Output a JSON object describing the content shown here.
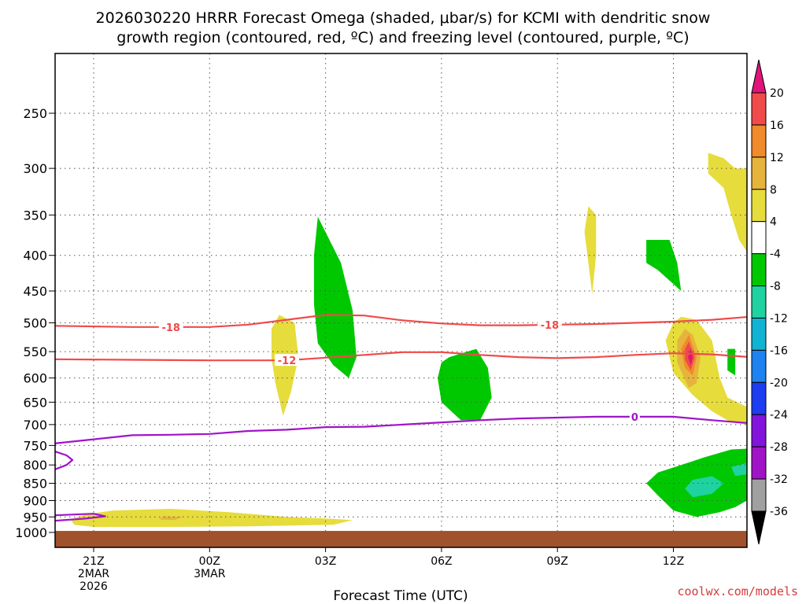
{
  "chart_data": {
    "type": "heatmap",
    "title_lines": [
      "2026030220 HRRR Forecast Omega (shaded, μbar/s) for KCMI with dendritic snow",
      "growth region (contoured, red, ºC) and freezing level (contoured, purple, ºC)"
    ],
    "xlabel": "Forecast Time (UTC)",
    "credit": "coolwx.com/models",
    "x_ticks": [
      {
        "hour": 0,
        "lines": [
          "21Z",
          "2MAR",
          "2026"
        ]
      },
      {
        "hour": 3,
        "lines": [
          "00Z",
          "3MAR"
        ]
      },
      {
        "hour": 6,
        "lines": [
          "03Z"
        ]
      },
      {
        "hour": 9,
        "lines": [
          "06Z"
        ]
      },
      {
        "hour": 12,
        "lines": [
          "09Z"
        ]
      },
      {
        "hour": 15,
        "lines": [
          "12Z"
        ]
      }
    ],
    "xlim": [
      -1,
      17
    ],
    "y_ticks": [
      250,
      300,
      350,
      400,
      450,
      500,
      550,
      600,
      650,
      700,
      750,
      800,
      850,
      900,
      950,
      1000
    ],
    "ylim_hpa": [
      1020,
      200
    ],
    "y_scale": "log-pressure",
    "grid": true,
    "colorbar": {
      "labels": [
        20,
        16,
        12,
        8,
        4,
        -4,
        -8,
        -12,
        -16,
        -20,
        -24,
        -28,
        -32,
        -36
      ],
      "colors": [
        "#e0147a",
        "#f04a4a",
        "#f08a2a",
        "#e6b43c",
        "#e6dc3c",
        "#ffffff",
        "#00c800",
        "#20d2a0",
        "#10b4d2",
        "#1e82f0",
        "#1e3cf0",
        "#8214dc",
        "#a014c8",
        "#a0a0a0",
        "#000000"
      ]
    },
    "ground_color": "#a0522d",
    "ground_top_hpa": 995,
    "omega_regions": [
      {
        "color": "#00c800",
        "points": [
          [
            5.8,
            352
          ],
          [
            6.4,
            410
          ],
          [
            6.7,
            480
          ],
          [
            6.8,
            560
          ],
          [
            6.6,
            600
          ],
          [
            6.2,
            575
          ],
          [
            5.8,
            535
          ],
          [
            5.7,
            470
          ],
          [
            5.7,
            400
          ]
        ]
      },
      {
        "color": "#00c800",
        "points": [
          [
            9.2,
            560
          ],
          [
            9.9,
            545
          ],
          [
            10.2,
            580
          ],
          [
            10.3,
            640
          ],
          [
            10.0,
            690
          ],
          [
            9.5,
            690
          ],
          [
            9.0,
            650
          ],
          [
            8.9,
            600
          ],
          [
            9.0,
            570
          ]
        ]
      },
      {
        "color": "#00c800",
        "points": [
          [
            14.3,
            380
          ],
          [
            14.9,
            380
          ],
          [
            15.1,
            410
          ],
          [
            15.2,
            450
          ],
          [
            14.6,
            420
          ],
          [
            14.3,
            410
          ]
        ]
      },
      {
        "color": "#00c800",
        "points": [
          [
            16.4,
            545
          ],
          [
            16.6,
            545
          ],
          [
            16.6,
            595
          ],
          [
            16.4,
            585
          ]
        ]
      },
      {
        "color": "#00c800",
        "points": [
          [
            15.8,
            780
          ],
          [
            16.5,
            760
          ],
          [
            16.9,
            758
          ],
          [
            16.9,
            900
          ],
          [
            16.6,
            920
          ],
          [
            16.2,
            935
          ],
          [
            15.6,
            950
          ],
          [
            15.0,
            930
          ],
          [
            14.6,
            885
          ],
          [
            14.3,
            850
          ],
          [
            14.6,
            820
          ],
          [
            15.2,
            800
          ]
        ]
      },
      {
        "color": "#20d2a0",
        "points": [
          [
            15.5,
            840
          ],
          [
            16.0,
            830
          ],
          [
            16.3,
            850
          ],
          [
            16.0,
            880
          ],
          [
            15.5,
            890
          ],
          [
            15.3,
            865
          ]
        ]
      },
      {
        "color": "#20d2a0",
        "points": [
          [
            16.5,
            805
          ],
          [
            16.9,
            795
          ],
          [
            16.9,
            825
          ],
          [
            16.6,
            830
          ]
        ]
      },
      {
        "color": "#e6dc3c",
        "points": [
          [
            4.6,
            510
          ],
          [
            4.8,
            487
          ],
          [
            5.2,
            500
          ],
          [
            5.3,
            560
          ],
          [
            5.1,
            630
          ],
          [
            4.9,
            680
          ],
          [
            4.7,
            610
          ],
          [
            4.6,
            560
          ]
        ]
      },
      {
        "color": "#e6dc3c",
        "points": [
          [
            12.8,
            340
          ],
          [
            13.0,
            350
          ],
          [
            13.0,
            400
          ],
          [
            12.9,
            455
          ],
          [
            12.8,
            410
          ],
          [
            12.7,
            370
          ]
        ]
      },
      {
        "color": "#e6dc3c",
        "points": [
          [
            15.9,
            285
          ],
          [
            16.3,
            290
          ],
          [
            16.6,
            300
          ],
          [
            16.9,
            300
          ],
          [
            16.9,
            395
          ],
          [
            16.7,
            380
          ],
          [
            16.5,
            350
          ],
          [
            16.3,
            320
          ],
          [
            15.9,
            305
          ]
        ]
      },
      {
        "color": "#e6dc3c",
        "points": [
          [
            15.2,
            490
          ],
          [
            15.6,
            495
          ],
          [
            16.0,
            530
          ],
          [
            16.2,
            600
          ],
          [
            16.4,
            640
          ],
          [
            16.9,
            660
          ],
          [
            16.9,
            700
          ],
          [
            16.5,
            695
          ],
          [
            16.0,
            670
          ],
          [
            15.5,
            635
          ],
          [
            15.0,
            590
          ],
          [
            14.8,
            530
          ],
          [
            15.0,
            500
          ]
        ]
      },
      {
        "color": "#e6dc3c",
        "points": [
          [
            -0.2,
            942
          ],
          [
            0.5,
            930
          ],
          [
            2.0,
            925
          ],
          [
            3.5,
            935
          ],
          [
            5.0,
            950
          ],
          [
            6.0,
            955
          ],
          [
            6.7,
            960
          ],
          [
            6.2,
            975
          ],
          [
            4.0,
            980
          ],
          [
            2.0,
            982
          ],
          [
            0.0,
            982
          ],
          [
            -0.5,
            975
          ],
          [
            -0.6,
            958
          ]
        ]
      },
      {
        "color": "#e6b43c",
        "points": [
          [
            15.3,
            510
          ],
          [
            15.5,
            520
          ],
          [
            15.7,
            560
          ],
          [
            15.6,
            610
          ],
          [
            15.4,
            620
          ],
          [
            15.1,
            570
          ],
          [
            15.1,
            530
          ]
        ]
      },
      {
        "color": "#e6b43c",
        "points": [
          [
            1.8,
            948
          ],
          [
            2.3,
            950
          ],
          [
            2.1,
            960
          ],
          [
            1.7,
            958
          ]
        ]
      },
      {
        "color": "#f08a2a",
        "points": [
          [
            15.4,
            520
          ],
          [
            15.6,
            560
          ],
          [
            15.5,
            595
          ],
          [
            15.3,
            580
          ],
          [
            15.2,
            545
          ]
        ]
      },
      {
        "color": "#f04a4a",
        "points": [
          [
            15.4,
            532
          ],
          [
            15.55,
            560
          ],
          [
            15.45,
            585
          ],
          [
            15.3,
            565
          ],
          [
            15.3,
            545
          ]
        ]
      },
      {
        "color": "#e0147a",
        "points": [
          [
            15.45,
            545
          ],
          [
            15.5,
            560
          ],
          [
            15.45,
            575
          ],
          [
            15.38,
            560
          ]
        ]
      }
    ],
    "contours": [
      {
        "name": "-18",
        "color": "#f04a4a",
        "label_x": 2.0,
        "label_x2": 11.8,
        "points": [
          [
            -1,
            505
          ],
          [
            1,
            507
          ],
          [
            3,
            507
          ],
          [
            4,
            503
          ],
          [
            5,
            495
          ],
          [
            6,
            487
          ],
          [
            7,
            488
          ],
          [
            8,
            496
          ],
          [
            9,
            501
          ],
          [
            10,
            504
          ],
          [
            11,
            504
          ],
          [
            12,
            503
          ],
          [
            13,
            502
          ],
          [
            14,
            500
          ],
          [
            15,
            498
          ],
          [
            16,
            495
          ],
          [
            17,
            490
          ]
        ]
      },
      {
        "name": "-12",
        "color": "#f04a4a",
        "label_x": 5.0,
        "points": [
          [
            -1,
            564
          ],
          [
            1,
            565
          ],
          [
            3,
            566
          ],
          [
            4,
            566
          ],
          [
            5,
            566
          ],
          [
            6,
            561
          ],
          [
            7,
            556
          ],
          [
            8,
            551
          ],
          [
            9,
            551
          ],
          [
            10,
            556
          ],
          [
            11,
            560
          ],
          [
            12,
            562
          ],
          [
            13,
            560
          ],
          [
            14,
            556
          ],
          [
            15,
            553
          ],
          [
            16,
            555
          ],
          [
            17,
            560
          ]
        ]
      },
      {
        "name": "0",
        "color": "#a014c8",
        "label_x": 14.0,
        "points": [
          [
            -1,
            745
          ],
          [
            0,
            735
          ],
          [
            1,
            725
          ],
          [
            2,
            724
          ],
          [
            3,
            722
          ],
          [
            4,
            715
          ],
          [
            5,
            712
          ],
          [
            6,
            706
          ],
          [
            7,
            705
          ],
          [
            8,
            700
          ],
          [
            9,
            695
          ],
          [
            10,
            690
          ],
          [
            11,
            686
          ],
          [
            12,
            684
          ],
          [
            13,
            682
          ],
          [
            14,
            682
          ],
          [
            15,
            682
          ],
          [
            16,
            690
          ],
          [
            17,
            697
          ]
        ]
      },
      {
        "name": "freezing-bump",
        "color": "#a014c8",
        "label_x": null,
        "points": [
          [
            -1,
            765
          ],
          [
            -0.7,
            775
          ],
          [
            -0.55,
            787
          ],
          [
            -0.7,
            800
          ],
          [
            -1,
            812
          ]
        ]
      },
      {
        "name": "freezing-lower",
        "color": "#a014c8",
        "label_x": null,
        "points": [
          [
            -1,
            945
          ],
          [
            0,
            940
          ],
          [
            0.3,
            948
          ],
          [
            -0.2,
            955
          ],
          [
            -1,
            962
          ]
        ]
      }
    ]
  }
}
